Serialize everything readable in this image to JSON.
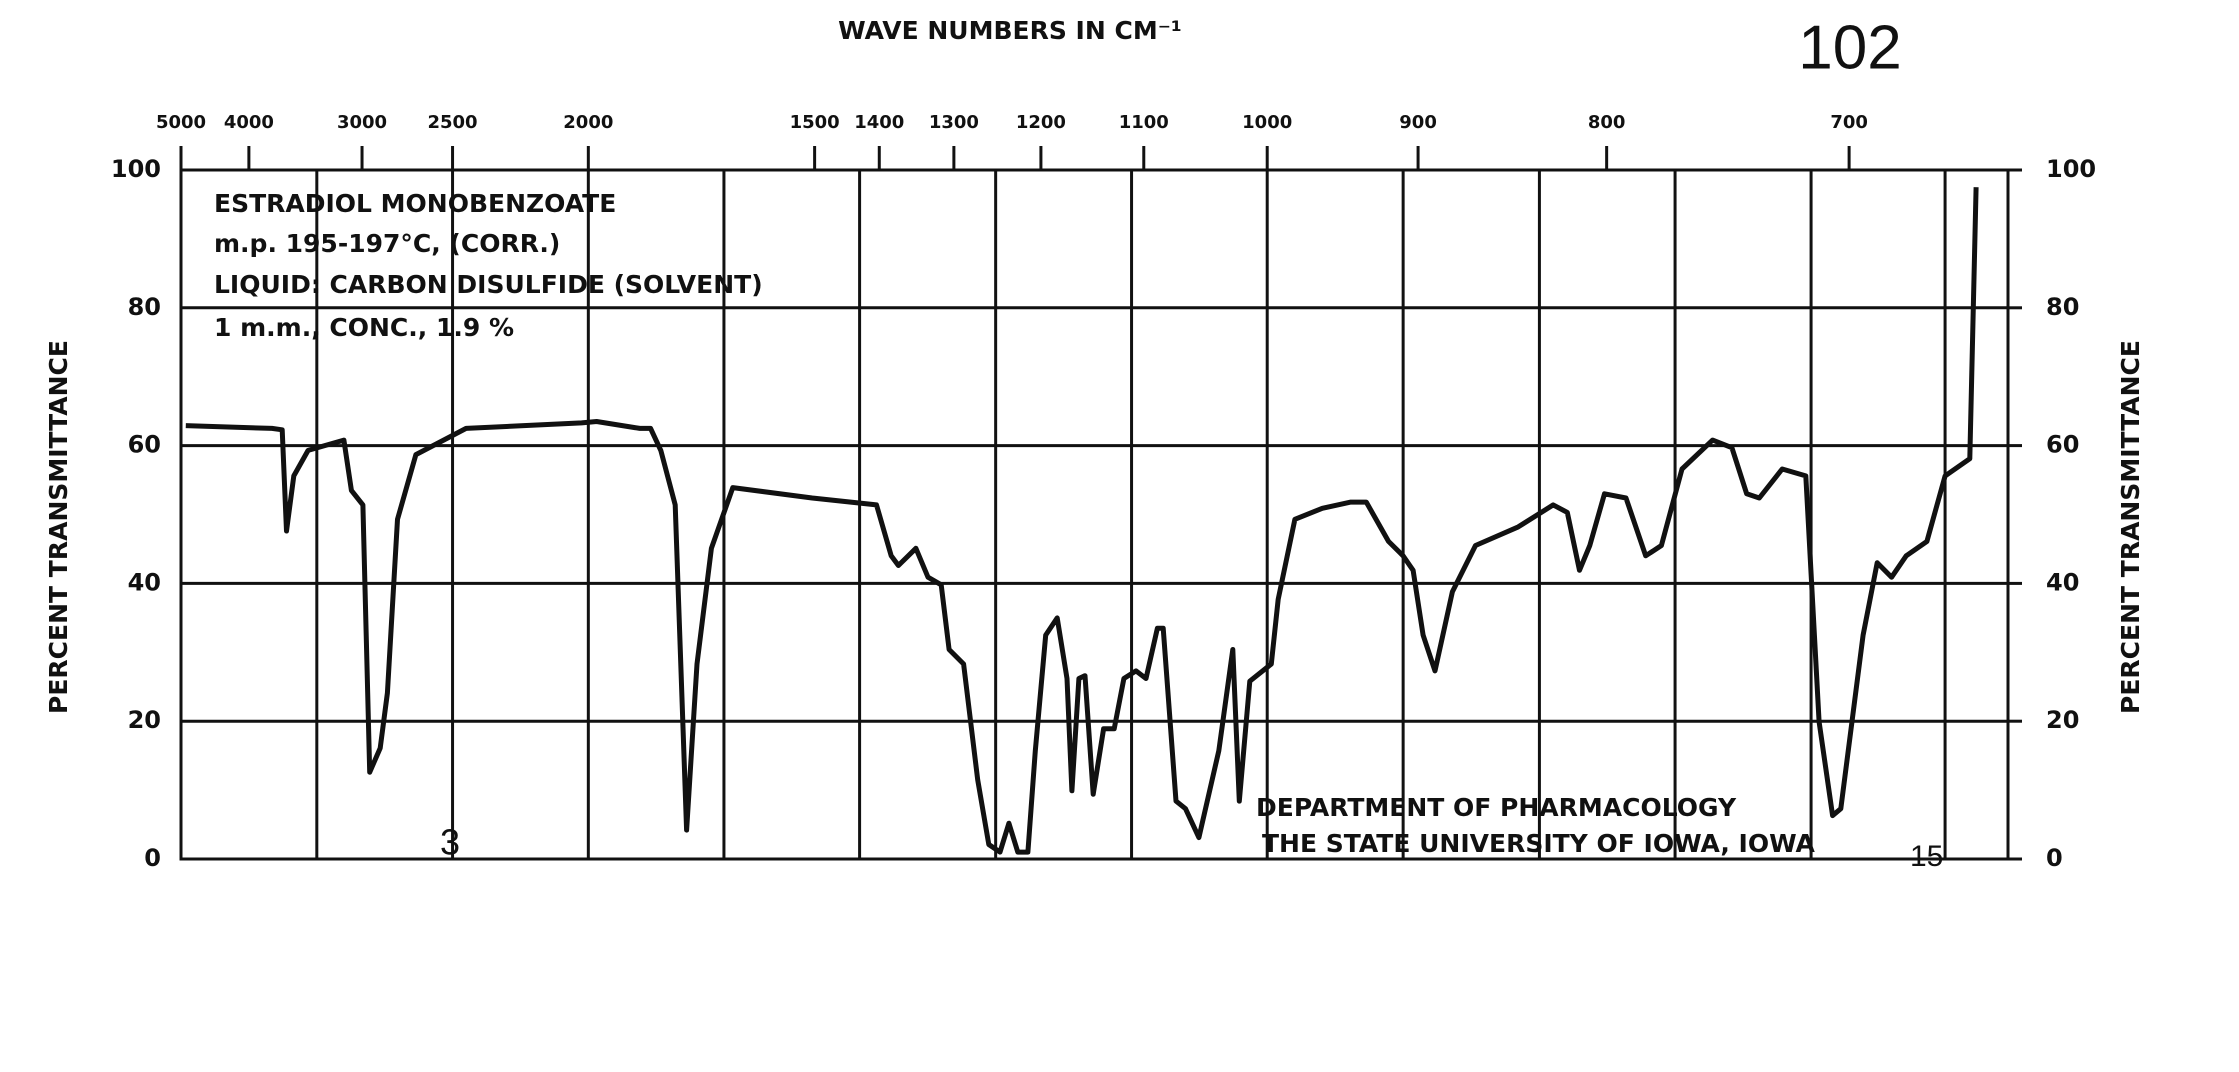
{
  "chart_data": {
    "type": "line",
    "title": "WAVE NUMBERS IN CM⁻¹",
    "page_number": "102",
    "ylabel": "PERCENT TRANSMITTANCE",
    "y2label": "PERCENT TRANSMITTANCE",
    "xscale": "reciprocal",
    "xlim": [
      5000,
      647
    ],
    "xticks": [
      5000,
      4000,
      3000,
      2500,
      2000,
      1500,
      1400,
      1300,
      1200,
      1100,
      1000,
      900,
      800,
      700
    ],
    "xgrid": [
      3333,
      2500,
      2000,
      1667,
      1429,
      1250,
      1111,
      1000,
      909,
      833,
      769,
      714,
      667
    ],
    "ylim": [
      0,
      100
    ],
    "yticks": [
      0,
      20,
      40,
      60,
      80,
      100
    ],
    "y2lim": [
      0,
      100
    ],
    "y2ticks": [
      0,
      20,
      40,
      60,
      80,
      100
    ],
    "grid": true,
    "color": "#111111",
    "annotations": [
      "ESTRADIOL MONOBENZOATE",
      "m.p. 195-197°C, (CORR.)",
      "LIQUID: CARBON DISULFIDE (SOLVENT)",
      "1 m.m., CONC., 1.9 %",
      "DEPARTMENT OF PHARMACOLOGY",
      "THE STATE UNIVERSITY OF IOWA, IOWA",
      "3",
      "15"
    ],
    "x": [
      4914,
      3745,
      3643,
      3601,
      3533,
      3406,
      3125,
      3072,
      2994,
      2950,
      2884,
      2841,
      2782,
      2681,
      2439,
      2020,
      1976,
      1859,
      1832,
      1807,
      1773,
      1747,
      1724,
      1693,
      1649,
      1504,
      1404,
      1383,
      1373,
      1349,
      1333,
      1316,
      1306,
      1288,
      1271,
      1258,
      1245,
      1235,
      1225,
      1214,
      1206,
      1195,
      1183,
      1173,
      1168,
      1161,
      1155,
      1147,
      1137,
      1127,
      1118,
      1107,
      1098,
      1088,
      1083,
      1072,
      1064,
      1053,
      1037,
      1026,
      1021,
      1013,
      997,
      992,
      980,
      961,
      942,
      932,
      918,
      909,
      903,
      897,
      890,
      880,
      867,
      844,
      826,
      819,
      813,
      808,
      801,
      791,
      782,
      775,
      766,
      753,
      745,
      739,
      734,
      725,
      716,
      711,
      706,
      703,
      695,
      690,
      685,
      680,
      673,
      667,
      659,
      657
    ],
    "values": [
      62.9,
      62.5,
      62.3,
      47.6,
      55.6,
      59.3,
      60.8,
      53.5,
      51.4,
      12.6,
      16.1,
      24.1,
      49.3,
      58.7,
      62.5,
      63.3,
      63.5,
      62.5,
      62.5,
      59.3,
      51.4,
      4.2,
      28.3,
      45.1,
      53.9,
      52.4,
      51.4,
      44,
      42.6,
      45.1,
      40.9,
      39.8,
      30.4,
      28.3,
      11.5,
      2.1,
      1,
      5.2,
      1,
      1,
      15.7,
      32.5,
      35,
      26.2,
      9.9,
      26.2,
      26.6,
      9.4,
      18.9,
      18.9,
      26.2,
      27.3,
      26.2,
      33.5,
      33.5,
      8.4,
      7.3,
      3.1,
      15.7,
      30.4,
      8.4,
      25.8,
      28.3,
      37.7,
      49.3,
      50.9,
      51.8,
      51.8,
      46.1,
      44,
      41.9,
      32.5,
      27.3,
      38.8,
      45.5,
      48.2,
      51.4,
      50.3,
      41.9,
      45.5,
      53,
      52.4,
      44,
      45.5,
      56.6,
      60.8,
      59.7,
      53,
      52.4,
      56.6,
      55.6,
      19.9,
      6.3,
      7.3,
      32.5,
      43,
      40.9,
      44,
      46.1,
      55.6,
      58.1,
      97.5
    ]
  }
}
